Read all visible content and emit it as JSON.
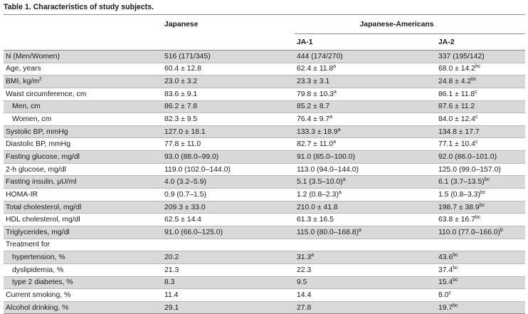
{
  "caption": "Table 1. Characteristics of study subjects.",
  "header": {
    "japanese": "Japanese",
    "group": "Japanese-Americans",
    "ja1": "JA-1",
    "ja2": "JA-2"
  },
  "rows": [
    {
      "label": "N (Men/Women)",
      "label_sup": "",
      "shaded": true,
      "indent": false,
      "c1": "516 (171/345)",
      "c1s": "",
      "c2": "444 (174/270)",
      "c2s": "",
      "c3": "337 (195/142)",
      "c3s": ""
    },
    {
      "label": "Age, years",
      "label_sup": "",
      "shaded": false,
      "indent": false,
      "c1": "60.4 ± 12.8",
      "c1s": "",
      "c2": "62.4 ± 11.8",
      "c2s": "a",
      "c3": "68.0 ± 14.2",
      "c3s": "bc"
    },
    {
      "label": "BMI, kg/m",
      "label_sup": "2",
      "shaded": true,
      "indent": false,
      "c1": "23.0 ± 3.2",
      "c1s": "",
      "c2": "23.3 ± 3.1",
      "c2s": "",
      "c3": "24.8 ± 4.2",
      "c3s": "bc"
    },
    {
      "label": "Waist circumference, cm",
      "label_sup": "",
      "shaded": false,
      "indent": false,
      "c1": "83.6 ± 9.1",
      "c1s": "",
      "c2": "79.8 ± 10.3",
      "c2s": "a",
      "c3": "86.1 ± 11.8",
      "c3s": "c"
    },
    {
      "label": "Men, cm",
      "label_sup": "",
      "shaded": true,
      "indent": true,
      "c1": "86.2 ± 7.8",
      "c1s": "",
      "c2": "85.2 ± 8.7",
      "c2s": "",
      "c3": "87.6 ± 11.2",
      "c3s": ""
    },
    {
      "label": "Women, cm",
      "label_sup": "",
      "shaded": false,
      "indent": true,
      "c1": "82.3 ± 9.5",
      "c1s": "",
      "c2": "76.4 ± 9.7",
      "c2s": "a",
      "c3": "84.0 ± 12.4",
      "c3s": "c"
    },
    {
      "label": "Systolic BP, mmHg",
      "label_sup": "",
      "shaded": true,
      "indent": false,
      "c1": "127.0 ± 18.1",
      "c1s": "",
      "c2": "133.3 ± 18.9",
      "c2s": "a",
      "c3": "134.8 ± 17.7",
      "c3s": ""
    },
    {
      "label": "Diastolic BP, mmHg",
      "label_sup": "",
      "shaded": false,
      "indent": false,
      "c1": "77.8 ± 11.0",
      "c1s": "",
      "c2": "82.7 ± 11.0",
      "c2s": "a",
      "c3": "77.1 ± 10.4",
      "c3s": "c"
    },
    {
      "label": "Fasting glucose, mg/dl",
      "label_sup": "",
      "shaded": true,
      "indent": false,
      "c1": "93.0 (88.0–99.0)",
      "c1s": "",
      "c2": "91.0 (85.0–100.0)",
      "c2s": "",
      "c3": "92.0 (86.0–101.0)",
      "c3s": ""
    },
    {
      "label": "2-h glucose, mg/dl",
      "label_sup": "",
      "shaded": false,
      "indent": false,
      "c1": "119.0 (102.0–144.0)",
      "c1s": "",
      "c2": "113.0 (94.0–144.0)",
      "c2s": "",
      "c3": "125.0 (99.0–157.0)",
      "c3s": ""
    },
    {
      "label": "Fasting insulin, μU/ml",
      "label_sup": "",
      "shaded": true,
      "indent": false,
      "c1": "4.0 (3.2–5.9)",
      "c1s": "",
      "c2": "5.1 (3.5–10.0)",
      "c2s": "a",
      "c3": "6.1 (3.7–13.5)",
      "c3s": "bc"
    },
    {
      "label": "HOMA-IR",
      "label_sup": "",
      "shaded": false,
      "indent": false,
      "c1": "0.9 (0.7–1.5)",
      "c1s": "",
      "c2": "1.2 (0.8–2.3)",
      "c2s": "a",
      "c3": "1.5 (0.8–3.3)",
      "c3s": "bc"
    },
    {
      "label": "Total cholesterol, mg/dl",
      "label_sup": "",
      "shaded": true,
      "indent": false,
      "c1": "209.3 ± 33.0",
      "c1s": "",
      "c2": "210.0 ± 41.8",
      "c2s": "",
      "c3": "198.7 ± 38.9",
      "c3s": "bc"
    },
    {
      "label": "HDL cholesterol, mg/dl",
      "label_sup": "",
      "shaded": false,
      "indent": false,
      "c1": "62.5 ± 14.4",
      "c1s": "",
      "c2": "61.3 ± 16.5",
      "c2s": "",
      "c3": "63.8 ± 16.7",
      "c3s": "bc"
    },
    {
      "label": "Triglycerides, mg/dl",
      "label_sup": "",
      "shaded": true,
      "indent": false,
      "c1": "91.0 (66.0–125.0)",
      "c1s": "",
      "c2": "115.0 (80.0–168.8)",
      "c2s": "a",
      "c3": "110.0 (77.0–166.0)",
      "c3s": "b"
    },
    {
      "label": "Treatment for",
      "label_sup": "",
      "shaded": false,
      "indent": false,
      "c1": "",
      "c1s": "",
      "c2": "",
      "c2s": "",
      "c3": "",
      "c3s": ""
    },
    {
      "label": "hypertension, %",
      "label_sup": "",
      "shaded": true,
      "indent": true,
      "c1": "20.2",
      "c1s": "",
      "c2": "31.3",
      "c2s": "a",
      "c3": "43.6",
      "c3s": "bc"
    },
    {
      "label": "dyslipidemia, %",
      "label_sup": "",
      "shaded": false,
      "indent": true,
      "c1": "21.3",
      "c1s": "",
      "c2": "22.3",
      "c2s": "",
      "c3": "37.4",
      "c3s": "bc"
    },
    {
      "label": "type 2 diabetes, %",
      "label_sup": "",
      "shaded": true,
      "indent": true,
      "c1": "8.3",
      "c1s": "",
      "c2": "9.5",
      "c2s": "",
      "c3": "15.4",
      "c3s": "bc"
    },
    {
      "label": "Current smoking, %",
      "label_sup": "",
      "shaded": false,
      "indent": false,
      "c1": "11.4",
      "c1s": "",
      "c2": "14.4",
      "c2s": "",
      "c3": "8.0",
      "c3s": "c"
    },
    {
      "label": "Alcohol drinking, %",
      "label_sup": "",
      "shaded": true,
      "indent": false,
      "c1": "29.1",
      "c1s": "",
      "c2": "27.8",
      "c2s": "",
      "c3": "19.7",
      "c3s": "bc"
    }
  ]
}
